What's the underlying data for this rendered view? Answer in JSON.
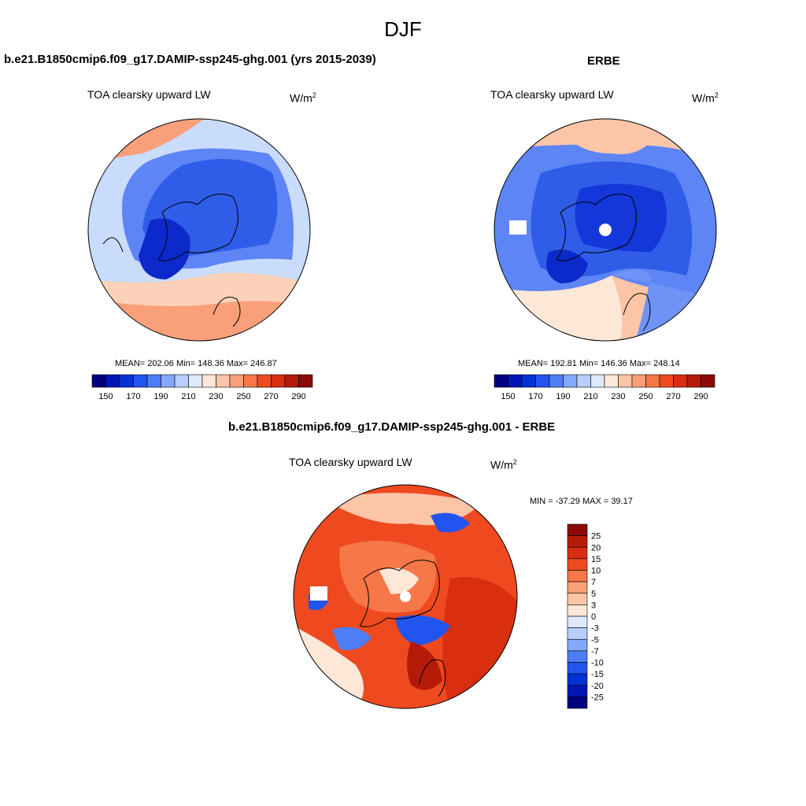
{
  "page": {
    "title": "DJF"
  },
  "panels": [
    {
      "title": "b.e21.B1850cmip6.f09_g17.DAMIP-ssp245-ghg.001 (yrs 2015-2039)",
      "variable": "TOA clearsky upward LW",
      "units_base": "W/m",
      "units_exp": "2",
      "stats": "MEAN= 202.06  Min= 148.36  Max= 246.87"
    },
    {
      "title": "ERBE",
      "variable": "TOA clearsky upward LW",
      "units_base": "W/m",
      "units_exp": "2",
      "stats": "MEAN= 192.81  Min= 146.36  Max= 248.14"
    },
    {
      "title": "b.e21.B1850cmip6.f09_g17.DAMIP-ssp245-ghg.001 - ERBE",
      "variable": "TOA clearsky upward LW",
      "units_base": "W/m",
      "units_exp": "2",
      "stats": "MIN = -37.29 MAX =  39.17"
    }
  ],
  "colorbar_abs": {
    "colors": [
      "#00007f",
      "#0015b5",
      "#0032d6",
      "#2255ee",
      "#4f7cf7",
      "#85a8fa",
      "#b8cdfb",
      "#ddeafb",
      "#fde7d7",
      "#fcc5a8",
      "#f9a078",
      "#f67748",
      "#ef4a1f",
      "#d92f10",
      "#b51a08",
      "#8b0a05"
    ],
    "tick_labels": [
      "150",
      "170",
      "190",
      "210",
      "230",
      "250",
      "270",
      "290"
    ]
  },
  "colorbar_diff": {
    "colors": [
      "#8b0a05",
      "#b51a08",
      "#d92f10",
      "#ef4a1f",
      "#f67748",
      "#f9a078",
      "#fcc5a8",
      "#fde7d7",
      "#ddeafb",
      "#b8cdfb",
      "#85a8fa",
      "#4f7cf7",
      "#2255ee",
      "#0032d6",
      "#0015b5",
      "#00007f"
    ],
    "tick_labels": [
      "25",
      "20",
      "15",
      "10",
      "7",
      "5",
      "3",
      "0",
      "-3",
      "-5",
      "-7",
      "-10",
      "-15",
      "-20",
      "-25"
    ]
  }
}
